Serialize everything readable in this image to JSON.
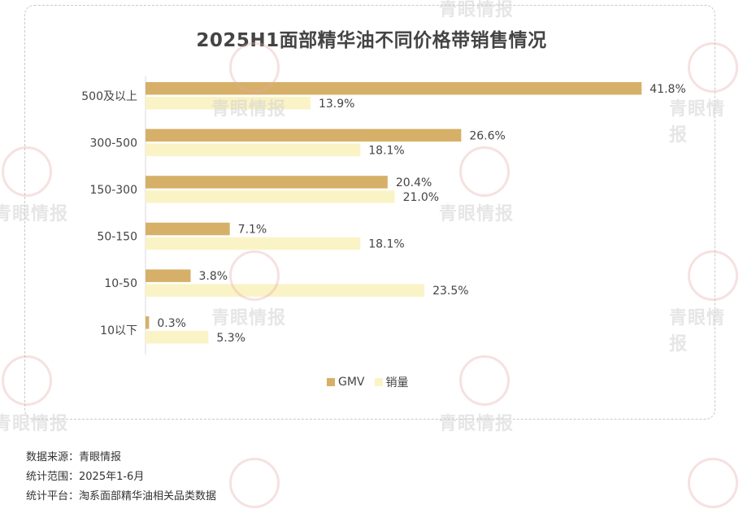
{
  "chart_data": {
    "type": "bar",
    "orientation": "horizontal",
    "title": "2025H1面部精华油不同价格带销售情况",
    "categories": [
      "500及以上",
      "300-500",
      "150-300",
      "50-150",
      "10-50",
      "10以下"
    ],
    "series": [
      {
        "name": "GMV",
        "color": "#d6b068",
        "values": [
          41.8,
          26.6,
          20.4,
          7.1,
          3.8,
          0.3
        ]
      },
      {
        "name": "销量",
        "color": "#faf3c6",
        "values": [
          13.9,
          18.1,
          21.0,
          18.1,
          23.5,
          5.3
        ]
      }
    ],
    "value_suffix": "%",
    "xlim": [
      0,
      50
    ],
    "grid": false,
    "legend_position": "bottom"
  },
  "notes": [
    "数据来源：青眼情报",
    "统计范围：2025年1-6月",
    "统计平台：淘系面部精华油相关品类数据"
  ],
  "watermark_text": "青眼情报"
}
